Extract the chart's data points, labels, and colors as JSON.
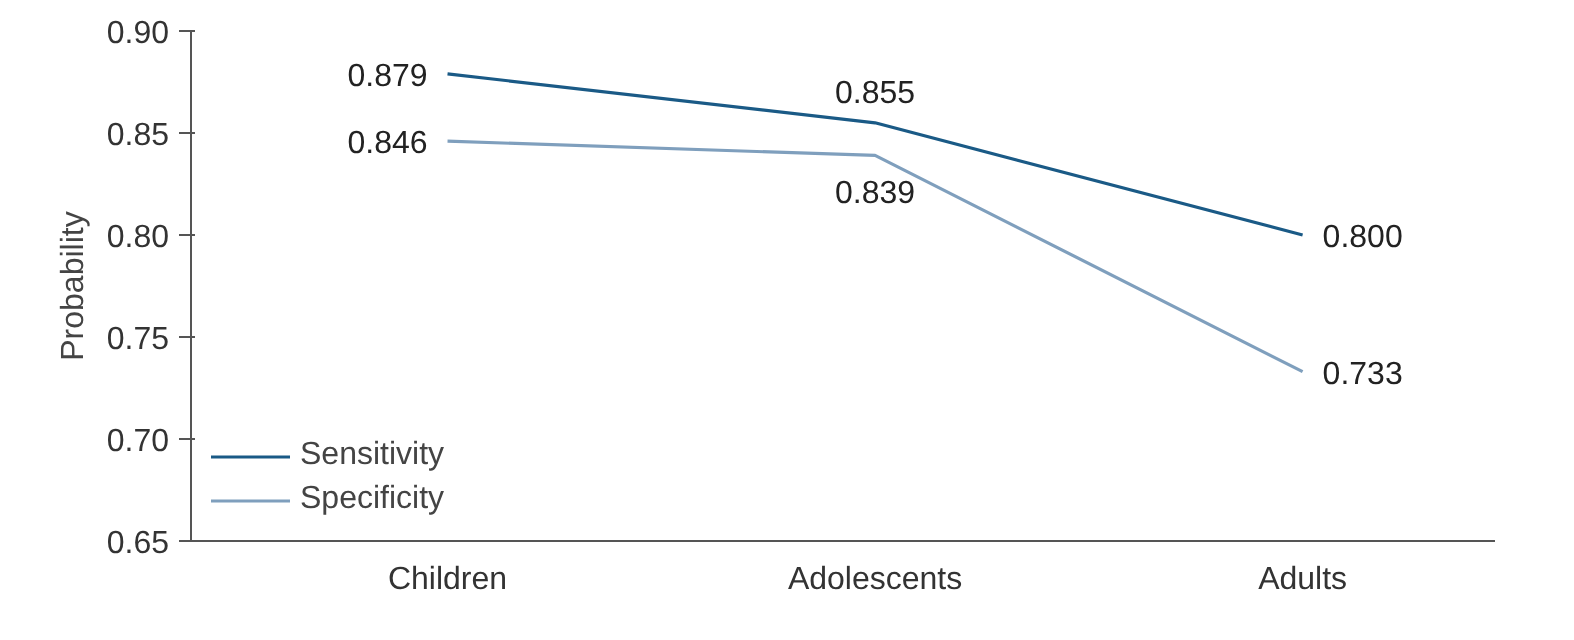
{
  "chart_data": {
    "type": "line",
    "ylabel": "Probability",
    "categories": [
      "Children",
      "Adolescents",
      "Adults"
    ],
    "series": [
      {
        "name": "Sensitivity",
        "color": "#1a5a86",
        "values": [
          0.879,
          0.855,
          0.8
        ],
        "value_labels": [
          "0.879",
          "0.855",
          "0.800"
        ]
      },
      {
        "name": "Specificity",
        "color": "#7f9fbd",
        "values": [
          0.846,
          0.839,
          0.733
        ],
        "value_labels": [
          "0.846",
          "0.839",
          "0.733"
        ]
      }
    ],
    "ylim": [
      0.65,
      0.9
    ],
    "yticks": [
      {
        "value": 0.65,
        "label": "0.65"
      },
      {
        "value": 0.7,
        "label": "0.70"
      },
      {
        "value": 0.75,
        "label": "0.75"
      },
      {
        "value": 0.8,
        "label": "0.80"
      },
      {
        "value": 0.85,
        "label": "0.85"
      },
      {
        "value": 0.9,
        "label": "0.90"
      }
    ],
    "grid": false,
    "legend": "bottom left",
    "marker": "none",
    "line_style": "solid"
  }
}
